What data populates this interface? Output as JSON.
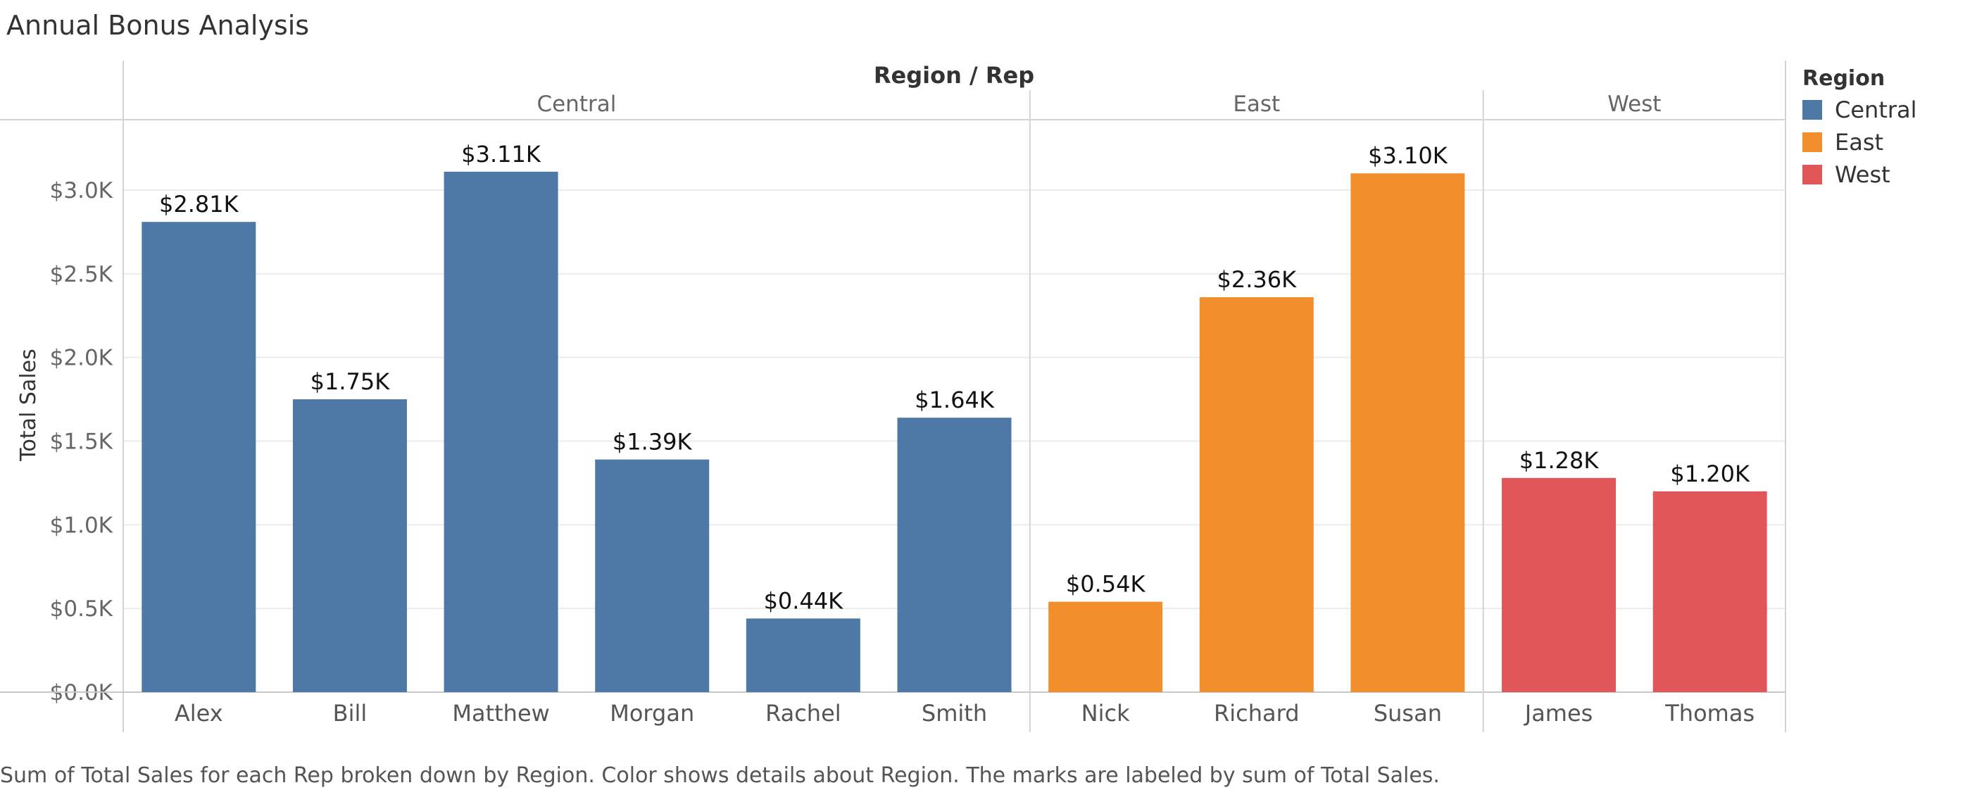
{
  "title": "Annual Bonus Analysis",
  "caption": "Sum of Total Sales for each Rep broken down by Region.  Color shows details about Region.  The marks are labeled by sum of Total Sales.",
  "legend": {
    "title": "Region",
    "items": [
      {
        "label": "Central",
        "color": "#4e79a7"
      },
      {
        "label": "East",
        "color": "#f28e2b"
      },
      {
        "label": "West",
        "color": "#e15759"
      }
    ]
  },
  "chart_data": {
    "type": "bar",
    "title": "Annual Bonus Analysis",
    "header": "Region / Rep",
    "ylabel": "Total Sales",
    "ylim": [
      0,
      3300
    ],
    "yticks": [
      0,
      500,
      1000,
      1500,
      2000,
      2500,
      3000
    ],
    "ytick_labels": [
      "$0.0K",
      "$0.5K",
      "$1.0K",
      "$1.5K",
      "$2.0K",
      "$2.5K",
      "$3.0K"
    ],
    "grid": true,
    "legend_position": "right",
    "groups": [
      {
        "region": "Central",
        "color": "#4e79a7",
        "reps": [
          "Alex",
          "Bill",
          "Matthew",
          "Morgan",
          "Rachel",
          "Smith"
        ],
        "values": [
          2810,
          1750,
          3110,
          1390,
          440,
          1640
        ],
        "labels": [
          "$2.81K",
          "$1.75K",
          "$3.11K",
          "$1.39K",
          "$0.44K",
          "$1.64K"
        ]
      },
      {
        "region": "East",
        "color": "#f28e2b",
        "reps": [
          "Nick",
          "Richard",
          "Susan"
        ],
        "values": [
          540,
          2360,
          3100
        ],
        "labels": [
          "$0.54K",
          "$2.36K",
          "$3.10K"
        ]
      },
      {
        "region": "West",
        "color": "#e15759",
        "reps": [
          "James",
          "Thomas"
        ],
        "values": [
          1280,
          1200
        ],
        "labels": [
          "$1.28K",
          "$1.20K"
        ]
      }
    ]
  }
}
